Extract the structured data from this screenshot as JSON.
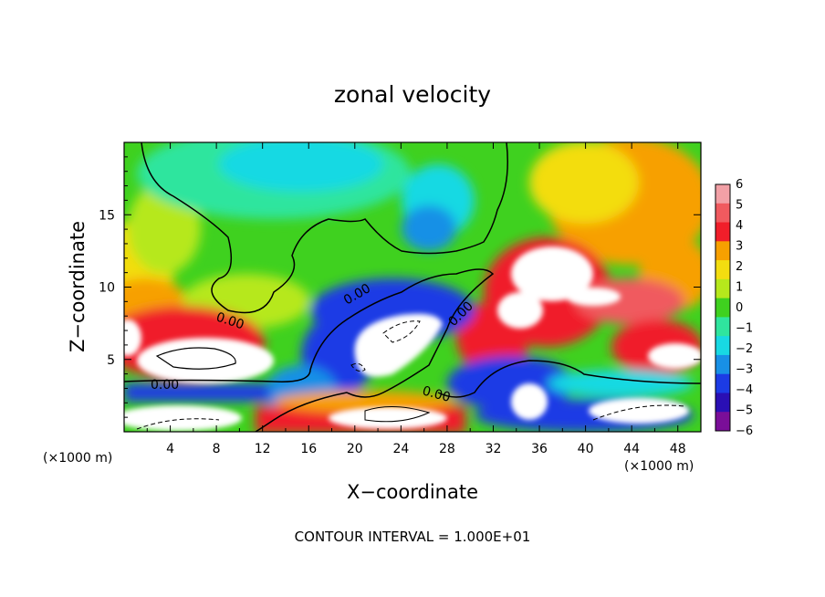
{
  "chart_data": {
    "type": "heatmap",
    "title": "zonal velocity",
    "xlabel": "X−coordinate",
    "ylabel": "Z−coordinate",
    "x_unit_label": "(×1000 m)",
    "y_unit_label": "(×1000 m)",
    "xlim": [
      0,
      50
    ],
    "ylim": [
      0,
      20
    ],
    "xticks": [
      4,
      8,
      12,
      16,
      20,
      24,
      28,
      32,
      36,
      40,
      44,
      48
    ],
    "yticks": [
      5,
      10,
      15
    ],
    "colorbar": {
      "levels": [
        6,
        5,
        4,
        3,
        2,
        1,
        0,
        -1,
        -2,
        -3,
        -4,
        -5,
        -6
      ],
      "colors": [
        "#f2a0a6",
        "#f05a5f",
        "#f01e2a",
        "#f7a000",
        "#f3dd10",
        "#b6e81c",
        "#3fd11f",
        "#2fe59e",
        "#18d9e3",
        "#1890e6",
        "#1c3be5",
        "#2a0fb4",
        "#7a0e98"
      ],
      "out_of_range_color": "#ffffff"
    },
    "contour_labels": [
      "0.00",
      "0.00",
      "0.00",
      "0.00",
      "0.00"
    ],
    "footnote": "CONTOUR INTERVAL = 1.000E+01"
  }
}
